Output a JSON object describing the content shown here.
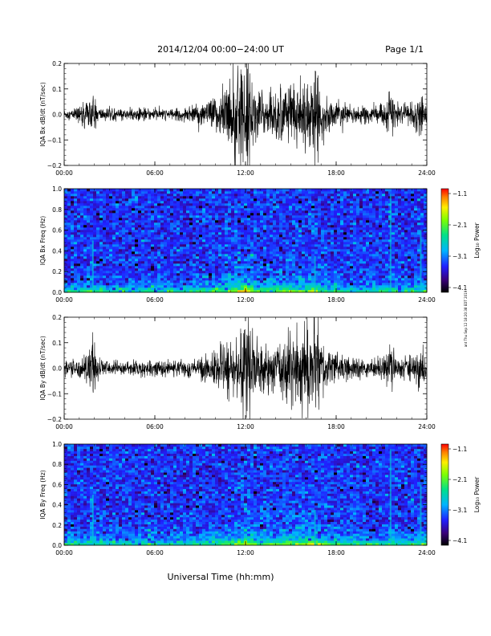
{
  "header": {
    "title": "2014/12/04  00:00−24:00 UT",
    "page": "Page 1/1"
  },
  "footer": {
    "xlabel": "Universal Time (hh:mm)",
    "side_stamp": "ant Thu Sep 12 18:20:38 EDT 2019"
  },
  "colorbar": {
    "title": "Log₁₀ Power",
    "ticks": [
      "−1.1",
      "−2.1",
      "−3.1",
      "−4.1"
    ]
  },
  "chart_data": [
    {
      "type": "line",
      "ylabel": "IQA Bx dB/dt (nT/sec)",
      "ylim": [
        -0.2,
        0.2
      ],
      "yticks": [
        "0.2",
        "0.1",
        "0.0",
        "−0.1",
        "−0.2"
      ],
      "xticks": [
        "00:00",
        "06:00",
        "12:00",
        "18:00",
        "24:00"
      ],
      "xlim_hours": [
        0,
        24
      ],
      "series": [
        {
          "values_note_free": true,
          "envelope": [
            [
              0.0,
              0.02
            ],
            [
              0.5,
              0.02
            ],
            [
              1.0,
              0.035
            ],
            [
              1.6,
              0.05
            ],
            [
              1.9,
              0.09
            ],
            [
              2.2,
              0.03
            ],
            [
              3.0,
              0.025
            ],
            [
              4.0,
              0.02
            ],
            [
              5.0,
              0.022
            ],
            [
              6.0,
              0.025
            ],
            [
              7.0,
              0.02
            ],
            [
              8.0,
              0.025
            ],
            [
              9.0,
              0.04
            ],
            [
              9.8,
              0.06
            ],
            [
              10.5,
              0.1
            ],
            [
              11.0,
              0.15
            ],
            [
              11.5,
              0.18
            ],
            [
              12.0,
              0.2
            ],
            [
              12.3,
              0.17
            ],
            [
              12.8,
              0.1
            ],
            [
              13.5,
              0.08
            ],
            [
              14.2,
              0.1
            ],
            [
              14.8,
              0.14
            ],
            [
              15.5,
              0.12
            ],
            [
              16.2,
              0.13
            ],
            [
              16.6,
              0.18
            ],
            [
              17.0,
              0.1
            ],
            [
              17.5,
              0.06
            ],
            [
              18.0,
              0.05
            ],
            [
              19.0,
              0.035
            ],
            [
              20.0,
              0.03
            ],
            [
              21.0,
              0.035
            ],
            [
              21.6,
              0.08
            ],
            [
              22.0,
              0.04
            ],
            [
              22.5,
              0.035
            ],
            [
              23.2,
              0.05
            ],
            [
              23.6,
              0.08
            ],
            [
              24.0,
              0.05
            ]
          ]
        }
      ]
    },
    {
      "type": "heatmap",
      "ylabel": "IQA Bx Freq (Hz)",
      "ylim": [
        0.0,
        1.0
      ],
      "yticks": [
        "1.0",
        "0.8",
        "0.6",
        "0.4",
        "0.2",
        "0.0"
      ],
      "xticks": [
        "00:00",
        "06:00",
        "12:00",
        "18:00",
        "24:00"
      ],
      "xlim_hours": [
        0,
        24
      ],
      "zlim": [
        -4.1,
        -1.1
      ],
      "zlabel": "Log₁₀ Power"
    },
    {
      "type": "line",
      "ylabel": "IQA By dB/dt (nT/sec)",
      "ylim": [
        -0.2,
        0.2
      ],
      "yticks": [
        "0.2",
        "0.1",
        "0.0",
        "−0.1",
        "−0.2"
      ],
      "xticks": [
        "00:00",
        "06:00",
        "12:00",
        "18:00",
        "24:00"
      ],
      "xlim_hours": [
        0,
        24
      ],
      "series": [
        {
          "values_note_free": true,
          "envelope": [
            [
              0.0,
              0.03
            ],
            [
              0.5,
              0.03
            ],
            [
              1.0,
              0.04
            ],
            [
              1.6,
              0.06
            ],
            [
              1.9,
              0.12
            ],
            [
              2.2,
              0.04
            ],
            [
              3.0,
              0.03
            ],
            [
              4.0,
              0.028
            ],
            [
              5.0,
              0.03
            ],
            [
              6.0,
              0.03
            ],
            [
              7.0,
              0.028
            ],
            [
              8.0,
              0.03
            ],
            [
              9.0,
              0.04
            ],
            [
              10.0,
              0.06
            ],
            [
              10.5,
              0.08
            ],
            [
              11.2,
              0.12
            ],
            [
              11.7,
              0.17
            ],
            [
              12.0,
              0.2
            ],
            [
              12.4,
              0.16
            ],
            [
              12.8,
              0.1
            ],
            [
              13.5,
              0.09
            ],
            [
              14.2,
              0.1
            ],
            [
              14.8,
              0.15
            ],
            [
              15.5,
              0.14
            ],
            [
              16.0,
              0.17
            ],
            [
              16.5,
              0.2
            ],
            [
              17.0,
              0.13
            ],
            [
              17.5,
              0.08
            ],
            [
              18.0,
              0.06
            ],
            [
              19.0,
              0.04
            ],
            [
              20.0,
              0.035
            ],
            [
              21.0,
              0.04
            ],
            [
              21.6,
              0.1
            ],
            [
              22.0,
              0.045
            ],
            [
              22.5,
              0.04
            ],
            [
              23.2,
              0.05
            ],
            [
              23.6,
              0.12
            ],
            [
              24.0,
              0.05
            ]
          ]
        }
      ]
    },
    {
      "type": "heatmap",
      "ylabel": "IQA By Freq (Hz)",
      "ylim": [
        0.0,
        1.0
      ],
      "yticks": [
        "1.0",
        "0.8",
        "0.6",
        "0.4",
        "0.2",
        "0.0"
      ],
      "xticks": [
        "00:00",
        "06:00",
        "12:00",
        "18:00",
        "24:00"
      ],
      "xlim_hours": [
        0,
        24
      ],
      "zlim": [
        -4.1,
        -1.1
      ],
      "zlabel": "Log₁₀ Power"
    }
  ]
}
